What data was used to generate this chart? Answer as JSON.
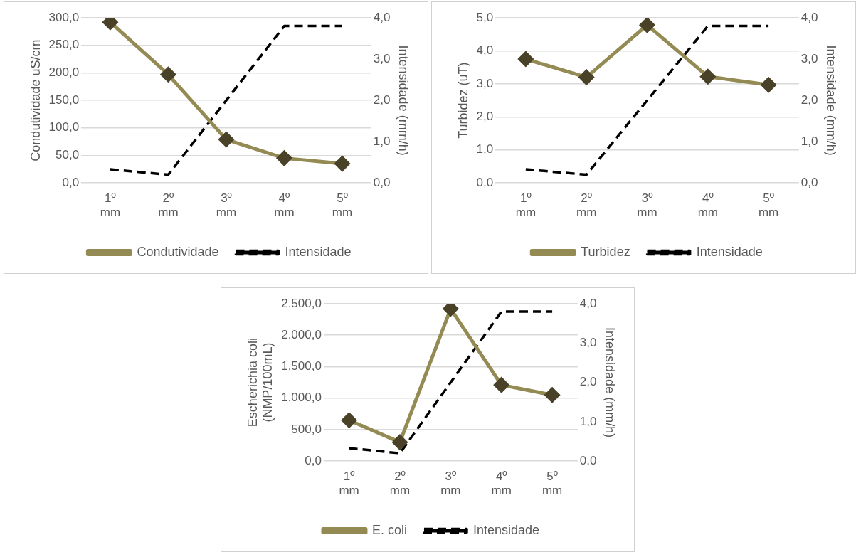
{
  "chart_data": [
    {
      "type": "line",
      "categories": [
        "1º mm",
        "2º mm",
        "3º mm",
        "4º mm",
        "5º mm"
      ],
      "ylabel": "Condutividade uS/cm",
      "y2label": "Intensidade (mm/h)",
      "ylim": [
        0,
        300
      ],
      "yticks": [
        {
          "value": 0,
          "label": "0,0"
        },
        {
          "value": 50,
          "label": "50,0"
        },
        {
          "value": 100,
          "label": "100,0"
        },
        {
          "value": 150,
          "label": "150,0"
        },
        {
          "value": 200,
          "label": "200,0"
        },
        {
          "value": 250,
          "label": "250,0"
        },
        {
          "value": 300,
          "label": "300,0"
        }
      ],
      "y2lim": [
        0,
        4
      ],
      "y2ticks": [
        {
          "value": 0,
          "label": "0,0"
        },
        {
          "value": 1,
          "label": "1,0"
        },
        {
          "value": 2,
          "label": "2,0"
        },
        {
          "value": 3,
          "label": "3,0"
        },
        {
          "value": 4,
          "label": "4,0"
        }
      ],
      "grid": "y",
      "legend": "bottom",
      "series": [
        {
          "name": "Condutividade",
          "color": "#948a54",
          "marker": "diamond",
          "line_style": "solid",
          "values": [
            292,
            197,
            79,
            45,
            35
          ]
        },
        {
          "name": "Intensidade",
          "color": "#000000",
          "marker": "none",
          "line_style": "dashed",
          "axis": "y2",
          "values": [
            0.33,
            0.2,
            2.0,
            3.8,
            3.8
          ]
        }
      ]
    },
    {
      "type": "line",
      "categories": [
        "1º mm",
        "2º mm",
        "3º mm",
        "4º mm",
        "5º mm"
      ],
      "ylabel": "Turbidez (uT)",
      "y2label": "Intensidade (mm/h)",
      "ylim": [
        0,
        5
      ],
      "yticks": [
        {
          "value": 0,
          "label": "0,0"
        },
        {
          "value": 1,
          "label": "1,0"
        },
        {
          "value": 2,
          "label": "2,0"
        },
        {
          "value": 3,
          "label": "3,0"
        },
        {
          "value": 4,
          "label": "4,0"
        },
        {
          "value": 5,
          "label": "5,0"
        }
      ],
      "y2lim": [
        0,
        4
      ],
      "y2ticks": [
        {
          "value": 0,
          "label": "0,0"
        },
        {
          "value": 1,
          "label": "1,0"
        },
        {
          "value": 2,
          "label": "2,0"
        },
        {
          "value": 3,
          "label": "3,0"
        },
        {
          "value": 4,
          "label": "4,0"
        }
      ],
      "grid": "y",
      "legend": "bottom",
      "series": [
        {
          "name": "Turbidez",
          "color": "#948a54",
          "marker": "diamond",
          "line_style": "solid",
          "values": [
            3.75,
            3.2,
            4.78,
            3.22,
            2.97
          ]
        },
        {
          "name": "Intensidade",
          "color": "#000000",
          "marker": "none",
          "line_style": "dashed",
          "axis": "y2",
          "values": [
            0.33,
            0.2,
            2.0,
            3.8,
            3.8
          ]
        }
      ]
    },
    {
      "type": "line",
      "categories": [
        "1º mm",
        "2º mm",
        "3º mm",
        "4º mm",
        "5º mm"
      ],
      "ylabel": "Escherichia coli (NMP/100mL)",
      "y2label": "Intensidade (mm/h)",
      "ylim": [
        0,
        2500
      ],
      "yticks": [
        {
          "value": 0,
          "label": "0,0"
        },
        {
          "value": 500,
          "label": "500,0"
        },
        {
          "value": 1000,
          "label": "1.000,0"
        },
        {
          "value": 1500,
          "label": "1.500,0"
        },
        {
          "value": 2000,
          "label": "2.000,0"
        },
        {
          "value": 2500,
          "label": "2.500,0"
        }
      ],
      "y2lim": [
        0,
        4
      ],
      "y2ticks": [
        {
          "value": 0,
          "label": "0,0"
        },
        {
          "value": 1,
          "label": "1,0"
        },
        {
          "value": 2,
          "label": "2,0"
        },
        {
          "value": 3,
          "label": "3,0"
        },
        {
          "value": 4,
          "label": "4,0"
        }
      ],
      "grid": "y",
      "legend": "bottom",
      "series": [
        {
          "name": "E. coli",
          "color": "#948a54",
          "marker": "diamond",
          "line_style": "solid",
          "values": [
            650,
            300,
            2420,
            1210,
            1050
          ]
        },
        {
          "name": "Intensidade",
          "color": "#000000",
          "marker": "none",
          "line_style": "dashed",
          "axis": "y2",
          "values": [
            0.33,
            0.2,
            2.0,
            3.8,
            3.8
          ]
        }
      ]
    }
  ]
}
